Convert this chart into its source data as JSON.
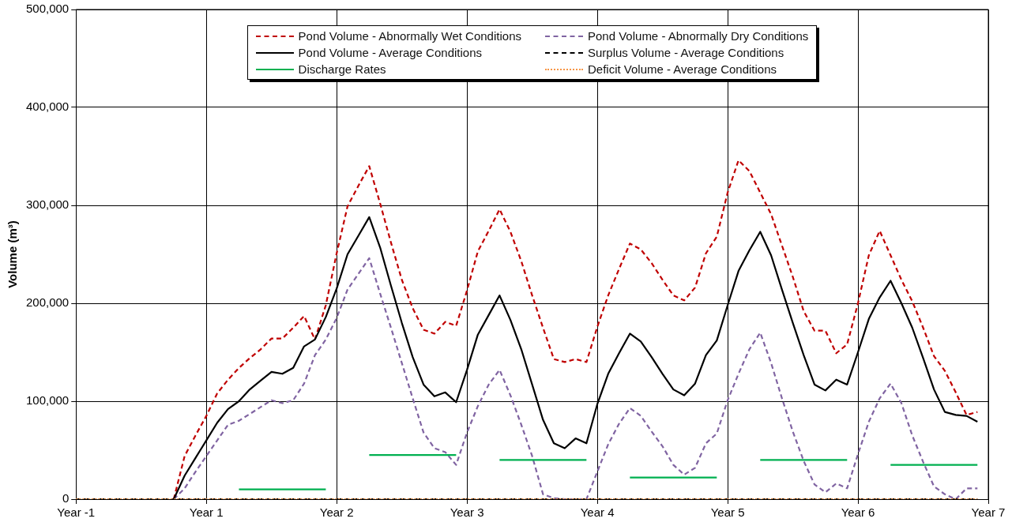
{
  "chart_data": {
    "type": "line",
    "ylabel": "Volume (m³)",
    "categories": [
      "Year -1",
      null,
      null,
      null,
      null,
      null,
      null,
      null,
      null,
      null,
      null,
      null,
      "Year 1",
      null,
      null,
      null,
      null,
      null,
      null,
      null,
      null,
      null,
      null,
      null,
      "Year 2",
      null,
      null,
      null,
      null,
      null,
      null,
      null,
      null,
      null,
      null,
      null,
      "Year 3",
      null,
      null,
      null,
      null,
      null,
      null,
      null,
      null,
      null,
      null,
      null,
      "Year 4",
      null,
      null,
      null,
      null,
      null,
      null,
      null,
      null,
      null,
      null,
      null,
      "Year 5",
      null,
      null,
      null,
      null,
      null,
      null,
      null,
      null,
      null,
      null,
      null,
      "Year 6",
      null,
      null,
      null,
      null,
      null,
      null,
      null,
      null,
      null,
      null,
      null,
      "Year 7"
    ],
    "series": [
      {
        "name": "Pond Volume - Abnormally Wet Conditions",
        "color": "#c00000",
        "line_style": "dashed",
        "values": [
          null,
          null,
          null,
          null,
          null,
          null,
          null,
          null,
          null,
          0,
          44000,
          65000,
          85000,
          108000,
          122000,
          134000,
          144000,
          153000,
          164000,
          164000,
          175000,
          187000,
          163000,
          198000,
          251000,
          299000,
          320000,
          340000,
          302000,
          262000,
          224000,
          195000,
          173000,
          169000,
          181000,
          177000,
          213000,
          253000,
          274000,
          296000,
          273000,
          243000,
          208000,
          175000,
          143000,
          140000,
          143000,
          140000,
          176000,
          208000,
          235000,
          261000,
          255000,
          241000,
          224000,
          208000,
          203000,
          216000,
          251000,
          268000,
          313000,
          346000,
          335000,
          313000,
          291000,
          259000,
          227000,
          192000,
          172000,
          172000,
          149000,
          158000,
          200000,
          249000,
          274000,
          249000,
          224000,
          202000,
          175000,
          146000,
          131000,
          109000,
          86000,
          89000,
          null
        ]
      },
      {
        "name": "Pond Volume - Abnormally Dry Conditions",
        "color": "#8064a2",
        "line_style": "dashed",
        "values": [
          null,
          null,
          null,
          null,
          null,
          null,
          null,
          null,
          null,
          0,
          11000,
          28000,
          44000,
          60000,
          76000,
          80000,
          87000,
          94000,
          101000,
          98000,
          101000,
          118000,
          147000,
          163000,
          185000,
          214000,
          230000,
          246000,
          210000,
          175000,
          139000,
          103000,
          68000,
          52000,
          48000,
          35000,
          68000,
          95000,
          117000,
          132000,
          106000,
          76000,
          44000,
          5000,
          1000,
          0,
          0,
          0,
          28000,
          56000,
          77000,
          93000,
          85000,
          69000,
          54000,
          35000,
          25000,
          32000,
          57000,
          67000,
          101000,
          128000,
          153000,
          170000,
          139000,
          103000,
          69000,
          39000,
          15000,
          7000,
          16000,
          11000,
          46000,
          79000,
          103000,
          118000,
          98000,
          65000,
          38000,
          13000,
          5000,
          0,
          11000,
          11000,
          null
        ]
      },
      {
        "name": "Pond Volume - Average Conditions",
        "color": "#000000",
        "line_style": "solid",
        "values": [
          null,
          null,
          null,
          null,
          null,
          null,
          null,
          null,
          null,
          0,
          24000,
          42000,
          60000,
          78000,
          92000,
          100000,
          112000,
          121000,
          130000,
          128000,
          134000,
          156000,
          163000,
          186000,
          215000,
          250000,
          269000,
          288000,
          257000,
          218000,
          180000,
          145000,
          117000,
          105000,
          109000,
          99000,
          132000,
          168000,
          188000,
          208000,
          183000,
          153000,
          117000,
          81000,
          57000,
          52000,
          62000,
          57000,
          97000,
          128000,
          149000,
          169000,
          161000,
          145000,
          128000,
          112000,
          106000,
          118000,
          147000,
          162000,
          198000,
          233000,
          254000,
          273000,
          249000,
          214000,
          180000,
          147000,
          117000,
          111000,
          122000,
          117000,
          150000,
          184000,
          206000,
          223000,
          200000,
          175000,
          144000,
          112000,
          89000,
          86000,
          85000,
          79000,
          null
        ]
      },
      {
        "name": "Surplus Volume - Average Conditions",
        "color": "#000000",
        "line_style": "dashed",
        "values": [
          0,
          0,
          0,
          0,
          0,
          0,
          0,
          0,
          0,
          0,
          0,
          0,
          0,
          0,
          0,
          0,
          0,
          0,
          0,
          0,
          0,
          0,
          0,
          0,
          0,
          0,
          0,
          0,
          0,
          0,
          0,
          0,
          0,
          0,
          0,
          0,
          0,
          0,
          0,
          0,
          0,
          0,
          0,
          0,
          0,
          0,
          0,
          0,
          0,
          0,
          0,
          0,
          0,
          0,
          0,
          0,
          0,
          0,
          0,
          0,
          0,
          0,
          0,
          0,
          0,
          0,
          0,
          0,
          0,
          0,
          0,
          0,
          0,
          0,
          0,
          0,
          0,
          0,
          0,
          0,
          0,
          0,
          0,
          0,
          null
        ]
      },
      {
        "name": "Discharge Rates",
        "color": "#00b050",
        "line_style": "solid",
        "values": [
          null,
          null,
          null,
          null,
          null,
          null,
          null,
          null,
          null,
          null,
          null,
          null,
          null,
          null,
          null,
          10000,
          10000,
          10000,
          10000,
          10000,
          10000,
          10000,
          10000,
          10000,
          null,
          null,
          null,
          45000,
          45000,
          45000,
          45000,
          45000,
          45000,
          45000,
          45000,
          45000,
          null,
          null,
          null,
          40000,
          40000,
          40000,
          40000,
          40000,
          40000,
          40000,
          40000,
          40000,
          null,
          null,
          null,
          22000,
          22000,
          22000,
          22000,
          22000,
          22000,
          22000,
          22000,
          22000,
          null,
          null,
          null,
          40000,
          40000,
          40000,
          40000,
          40000,
          40000,
          40000,
          40000,
          40000,
          null,
          null,
          null,
          35000,
          35000,
          35000,
          35000,
          35000,
          35000,
          35000,
          35000,
          35000,
          null
        ]
      },
      {
        "name": "Deficit Volume - Average Conditions",
        "color": "#f79646",
        "line_style": "dotted",
        "values": [
          0,
          0,
          0,
          0,
          0,
          0,
          0,
          0,
          0,
          0,
          0,
          0,
          0,
          0,
          0,
          0,
          0,
          0,
          0,
          0,
          0,
          0,
          0,
          0,
          0,
          0,
          0,
          0,
          0,
          0,
          0,
          0,
          0,
          0,
          0,
          0,
          0,
          0,
          0,
          0,
          0,
          0,
          0,
          0,
          0,
          0,
          0,
          0,
          0,
          0,
          0,
          0,
          0,
          0,
          0,
          0,
          0,
          0,
          0,
          0,
          0,
          0,
          0,
          0,
          0,
          0,
          0,
          0,
          0,
          0,
          0,
          0,
          0,
          0,
          0,
          0,
          0,
          0,
          0,
          0,
          0,
          0,
          0,
          0,
          null
        ]
      }
    ],
    "ylim": [
      0,
      500000
    ],
    "yticks": [
      {
        "value": 0,
        "label": "0"
      },
      {
        "value": 100000,
        "label": "100,000"
      },
      {
        "value": 200000,
        "label": "200,000"
      },
      {
        "value": 300000,
        "label": "300,000"
      },
      {
        "value": 400000,
        "label": "400,000"
      },
      {
        "value": 500000,
        "label": "500,000"
      }
    ],
    "grid": true,
    "legend": "top",
    "marker": "none"
  }
}
